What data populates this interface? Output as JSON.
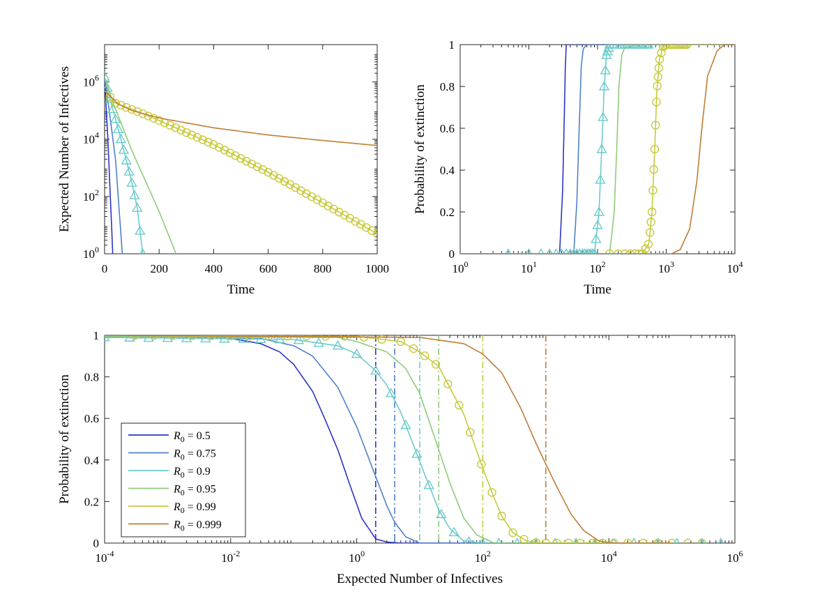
{
  "colors": {
    "R0_0.5": "#2a34c4",
    "R0_0.75": "#4f80c9",
    "R0_0.9": "#6acbcb",
    "R0_0.95": "#8fca7c",
    "R0_0.99": "#c7ca3c",
    "R0_0.999": "#bf7d35"
  },
  "chart_data": [
    {
      "id": "top-left",
      "type": "line",
      "xlabel": "Time",
      "ylabel": "Expected Number of Infectives",
      "xscale": "linear",
      "yscale": "log",
      "xlim": [
        0,
        1000
      ],
      "ylim": [
        1,
        20000000
      ],
      "xticks": [
        0,
        200,
        400,
        600,
        800,
        1000
      ],
      "xtick_labels": [
        "0",
        "200",
        "400",
        "600",
        "800",
        "1000"
      ],
      "yticks": [
        1,
        100,
        10000,
        1000000
      ],
      "ytick_labels": [
        {
          "base": "10",
          "exp": "0"
        },
        {
          "base": "10",
          "exp": "2"
        },
        {
          "base": "10",
          "exp": "4"
        },
        {
          "base": "10",
          "exp": "6"
        }
      ],
      "series": [
        {
          "key": "R0_0.5",
          "x": [
            0,
            12,
            30
          ],
          "y": [
            1500000,
            10000,
            1
          ]
        },
        {
          "key": "R0_0.75",
          "x": [
            0,
            20,
            40,
            65
          ],
          "y": [
            1500000,
            60000,
            2000,
            1
          ]
        },
        {
          "key": "R0_0.9",
          "x": [
            0,
            20,
            40,
            60,
            80,
            100,
            120,
            140
          ],
          "y": [
            1500000,
            250000,
            50000,
            10000,
            1800,
            300,
            40,
            1
          ],
          "markers": "triangle",
          "marker_x": [
            0,
            10,
            20,
            30,
            40,
            50,
            60,
            70,
            80,
            90,
            100,
            110,
            120,
            130,
            140
          ]
        },
        {
          "key": "R0_0.95",
          "x": [
            0,
            30,
            100,
            200,
            262
          ],
          "y": [
            1500000,
            200000,
            4000,
            30,
            1
          ]
        },
        {
          "key": "R0_0.99",
          "x": [
            0,
            40,
            100,
            200,
            400,
            600,
            800,
            1000
          ],
          "y": [
            500000,
            180000,
            110000,
            45000,
            6500,
            700,
            60,
            5
          ],
          "markers": "circle",
          "marker_x": [
            20,
            40,
            60,
            80,
            100,
            120,
            140,
            160,
            180,
            200,
            220,
            240,
            260,
            280,
            300,
            320,
            340,
            360,
            380,
            400,
            420,
            440,
            460,
            480,
            500,
            520,
            540,
            560,
            580,
            600,
            620,
            640,
            660,
            680,
            700,
            720,
            740,
            760,
            780,
            800,
            820,
            840,
            860,
            880,
            900,
            920,
            940,
            960,
            980,
            1000
          ]
        },
        {
          "key": "R0_0.999",
          "x": [
            0,
            50,
            100,
            200,
            400,
            600,
            800,
            1000
          ],
          "y": [
            500000,
            170000,
            100000,
            55000,
            25000,
            14000,
            9000,
            6000
          ]
        }
      ]
    },
    {
      "id": "top-right",
      "type": "line",
      "xlabel": "Time",
      "ylabel": "Probability of extinction",
      "xscale": "log",
      "yscale": "linear",
      "xlim": [
        1,
        10000
      ],
      "ylim": [
        0,
        1
      ],
      "xticks": [
        1,
        10,
        100,
        1000,
        10000
      ],
      "xtick_labels": [
        {
          "base": "10",
          "exp": "0"
        },
        {
          "base": "10",
          "exp": "1"
        },
        {
          "base": "10",
          "exp": "2"
        },
        {
          "base": "10",
          "exp": "3"
        },
        {
          "base": "10",
          "exp": "4"
        }
      ],
      "yticks": [
        0,
        0.2,
        0.4,
        0.6,
        0.8,
        1
      ],
      "ytick_labels": [
        "0",
        "0.2",
        "0.4",
        "0.6",
        "0.8",
        "1"
      ],
      "series": [
        {
          "key": "R0_0.5",
          "x": [
            1,
            28,
            31,
            33,
            34,
            35,
            40,
            10000
          ],
          "y": [
            0,
            0,
            0.3,
            0.7,
            0.9,
            1,
            1,
            1
          ]
        },
        {
          "key": "R0_0.75",
          "x": [
            1,
            45,
            50,
            54,
            58,
            62,
            70,
            10000
          ],
          "y": [
            0,
            0,
            0.25,
            0.6,
            0.9,
            0.98,
            1,
            1
          ]
        },
        {
          "key": "R0_0.9",
          "x": [
            1,
            90,
            105,
            115,
            125,
            135,
            150,
            10000
          ],
          "y": [
            0,
            0,
            0.2,
            0.5,
            0.8,
            0.95,
            1,
            1
          ],
          "markers": "triangle",
          "marker_x": [
            5,
            10,
            15,
            20,
            25,
            30,
            35,
            40,
            45,
            50,
            55,
            60,
            65,
            70,
            75,
            80,
            85,
            90,
            95,
            100,
            105,
            110,
            115,
            120,
            125,
            130,
            135,
            140,
            145,
            150,
            170,
            190,
            210,
            230,
            250,
            270,
            290,
            310,
            330,
            350,
            370,
            400,
            430,
            460,
            490,
            520,
            550
          ]
        },
        {
          "key": "R0_0.95",
          "x": [
            1,
            150,
            175,
            190,
            205,
            225,
            260,
            10000
          ],
          "y": [
            0,
            0,
            0.2,
            0.5,
            0.8,
            0.95,
            1,
            1
          ]
        },
        {
          "key": "R0_0.99",
          "x": [
            1,
            450,
            560,
            620,
            680,
            730,
            800,
            900,
            1000,
            10000
          ],
          "y": [
            0,
            0,
            0.05,
            0.2,
            0.5,
            0.78,
            0.93,
            0.99,
            1,
            1
          ],
          "markers": "circle",
          "marker_x": [
            150,
            200,
            250,
            300,
            350,
            400,
            450,
            500,
            550,
            580,
            600,
            620,
            640,
            660,
            680,
            700,
            720,
            740,
            760,
            780,
            800,
            850,
            900,
            950,
            1000,
            1100,
            1200,
            1300,
            1400,
            1500,
            1600,
            1700,
            1800,
            1900,
            2000
          ]
        },
        {
          "key": "R0_0.999",
          "x": [
            1,
            1200,
            1600,
            2200,
            2800,
            3300,
            4000,
            5500,
            7000,
            10000
          ],
          "y": [
            0,
            0,
            0.02,
            0.12,
            0.35,
            0.6,
            0.85,
            0.97,
            1,
            1
          ]
        }
      ]
    },
    {
      "id": "bottom",
      "type": "line",
      "xlabel": "Expected Number of Infectives",
      "ylabel": "Probability of extinction",
      "xscale": "log",
      "yscale": "linear",
      "xlim": [
        0.0001,
        1000000
      ],
      "ylim": [
        0,
        1
      ],
      "xticks": [
        0.0001,
        0.01,
        1,
        100,
        10000,
        1000000
      ],
      "xtick_labels": [
        {
          "base": "10",
          "exp": "-4"
        },
        {
          "base": "10",
          "exp": "-2"
        },
        {
          "base": "10",
          "exp": "0"
        },
        {
          "base": "10",
          "exp": "2"
        },
        {
          "base": "10",
          "exp": "4"
        },
        {
          "base": "10",
          "exp": "6"
        }
      ],
      "yticks": [
        0,
        0.2,
        0.4,
        0.6,
        0.8,
        1
      ],
      "ytick_labels": [
        "0",
        "0.2",
        "0.4",
        "0.6",
        "0.8",
        "1"
      ],
      "legend": {
        "placement": "lower-left",
        "entries": [
          {
            "key": "R0_0.5",
            "label": "= 0.5"
          },
          {
            "key": "R0_0.75",
            "label": "= 0.75"
          },
          {
            "key": "R0_0.9",
            "label": "= 0.9"
          },
          {
            "key": "R0_0.95",
            "label": "= 0.95"
          },
          {
            "key": "R0_0.99",
            "label": "= 0.99"
          },
          {
            "key": "R0_0.999",
            "label": "= 0.999"
          }
        ],
        "symbol_base": "R",
        "symbol_sub": "0"
      },
      "vlines": [
        {
          "key": "R0_0.5",
          "x": 2
        },
        {
          "key": "R0_0.75",
          "x": 4
        },
        {
          "key": "R0_0.9",
          "x": 10
        },
        {
          "key": "R0_0.95",
          "x": 20
        },
        {
          "key": "R0_0.99",
          "x": 100
        },
        {
          "key": "R0_0.999",
          "x": 1000
        }
      ],
      "series": [
        {
          "key": "R0_0.5",
          "x": [
            0.0001,
            0.01,
            0.03,
            0.06,
            0.1,
            0.2,
            0.3,
            0.5,
            0.8,
            1.2,
            2,
            3,
            5,
            100000
          ],
          "y": [
            0.99,
            0.985,
            0.96,
            0.92,
            0.86,
            0.73,
            0.61,
            0.45,
            0.27,
            0.12,
            0.02,
            0.005,
            0,
            0
          ]
        },
        {
          "key": "R0_0.75",
          "x": [
            0.0001,
            0.03,
            0.1,
            0.2,
            0.5,
            1,
            2,
            3,
            4,
            6,
            10,
            100000
          ],
          "y": [
            0.99,
            0.985,
            0.95,
            0.9,
            0.75,
            0.56,
            0.32,
            0.18,
            0.1,
            0.03,
            0,
            0
          ]
        },
        {
          "key": "R0_0.9",
          "x": [
            0.0001,
            0.1,
            0.5,
            1,
            2,
            3,
            5,
            8,
            12,
            20,
            30,
            50,
            100,
            100000
          ],
          "y": [
            0.99,
            0.98,
            0.95,
            0.91,
            0.83,
            0.76,
            0.63,
            0.47,
            0.33,
            0.16,
            0.07,
            0.01,
            0,
            0
          ],
          "markers": "triangle",
          "marker_x": [
            0.0001,
            0.00025,
            0.0005,
            0.001,
            0.002,
            0.004,
            0.008,
            0.016,
            0.03,
            0.06,
            0.12,
            0.25,
            0.5,
            1,
            2,
            3.5,
            6,
            9,
            14,
            22,
            35,
            60,
            100,
            180,
            350,
            700,
            1400,
            3000,
            6000,
            12000,
            25000,
            60000,
            120000,
            300000,
            600000
          ]
        },
        {
          "key": "R0_0.95",
          "x": [
            0.0001,
            0.5,
            1,
            3,
            6,
            10,
            20,
            30,
            50,
            80,
            150,
            300,
            100000
          ],
          "y": [
            0.995,
            0.99,
            0.97,
            0.92,
            0.84,
            0.72,
            0.45,
            0.29,
            0.12,
            0.04,
            0,
            0,
            0
          ]
        },
        {
          "key": "R0_0.99",
          "x": [
            0.0001,
            1,
            5,
            10,
            20,
            50,
            100,
            150,
            200,
            300,
            500,
            800,
            100000
          ],
          "y": [
            1,
            0.995,
            0.97,
            0.92,
            0.85,
            0.62,
            0.36,
            0.22,
            0.13,
            0.05,
            0.01,
            0,
            0
          ],
          "markers": "circle",
          "marker_x": [
            0.0003,
            0.0006,
            0.0012,
            0.0025,
            0.005,
            0.01,
            0.02,
            0.04,
            0.08,
            0.16,
            0.32,
            0.64,
            1.3,
            2.5,
            5,
            8,
            12,
            18,
            28,
            42,
            63,
            95,
            140,
            200,
            300,
            450,
            700,
            1000,
            1500,
            2300,
            3500,
            5500,
            8000,
            12000,
            20000,
            35000,
            60000,
            100000,
            180000,
            300000
          ]
        },
        {
          "key": "R0_0.999",
          "x": [
            0.0001,
            10,
            50,
            100,
            200,
            400,
            700,
            1000,
            1500,
            2500,
            4000,
            7000,
            12000,
            100000
          ],
          "y": [
            1,
            0.99,
            0.96,
            0.91,
            0.82,
            0.65,
            0.48,
            0.38,
            0.27,
            0.14,
            0.06,
            0.01,
            0,
            0
          ]
        }
      ]
    }
  ]
}
